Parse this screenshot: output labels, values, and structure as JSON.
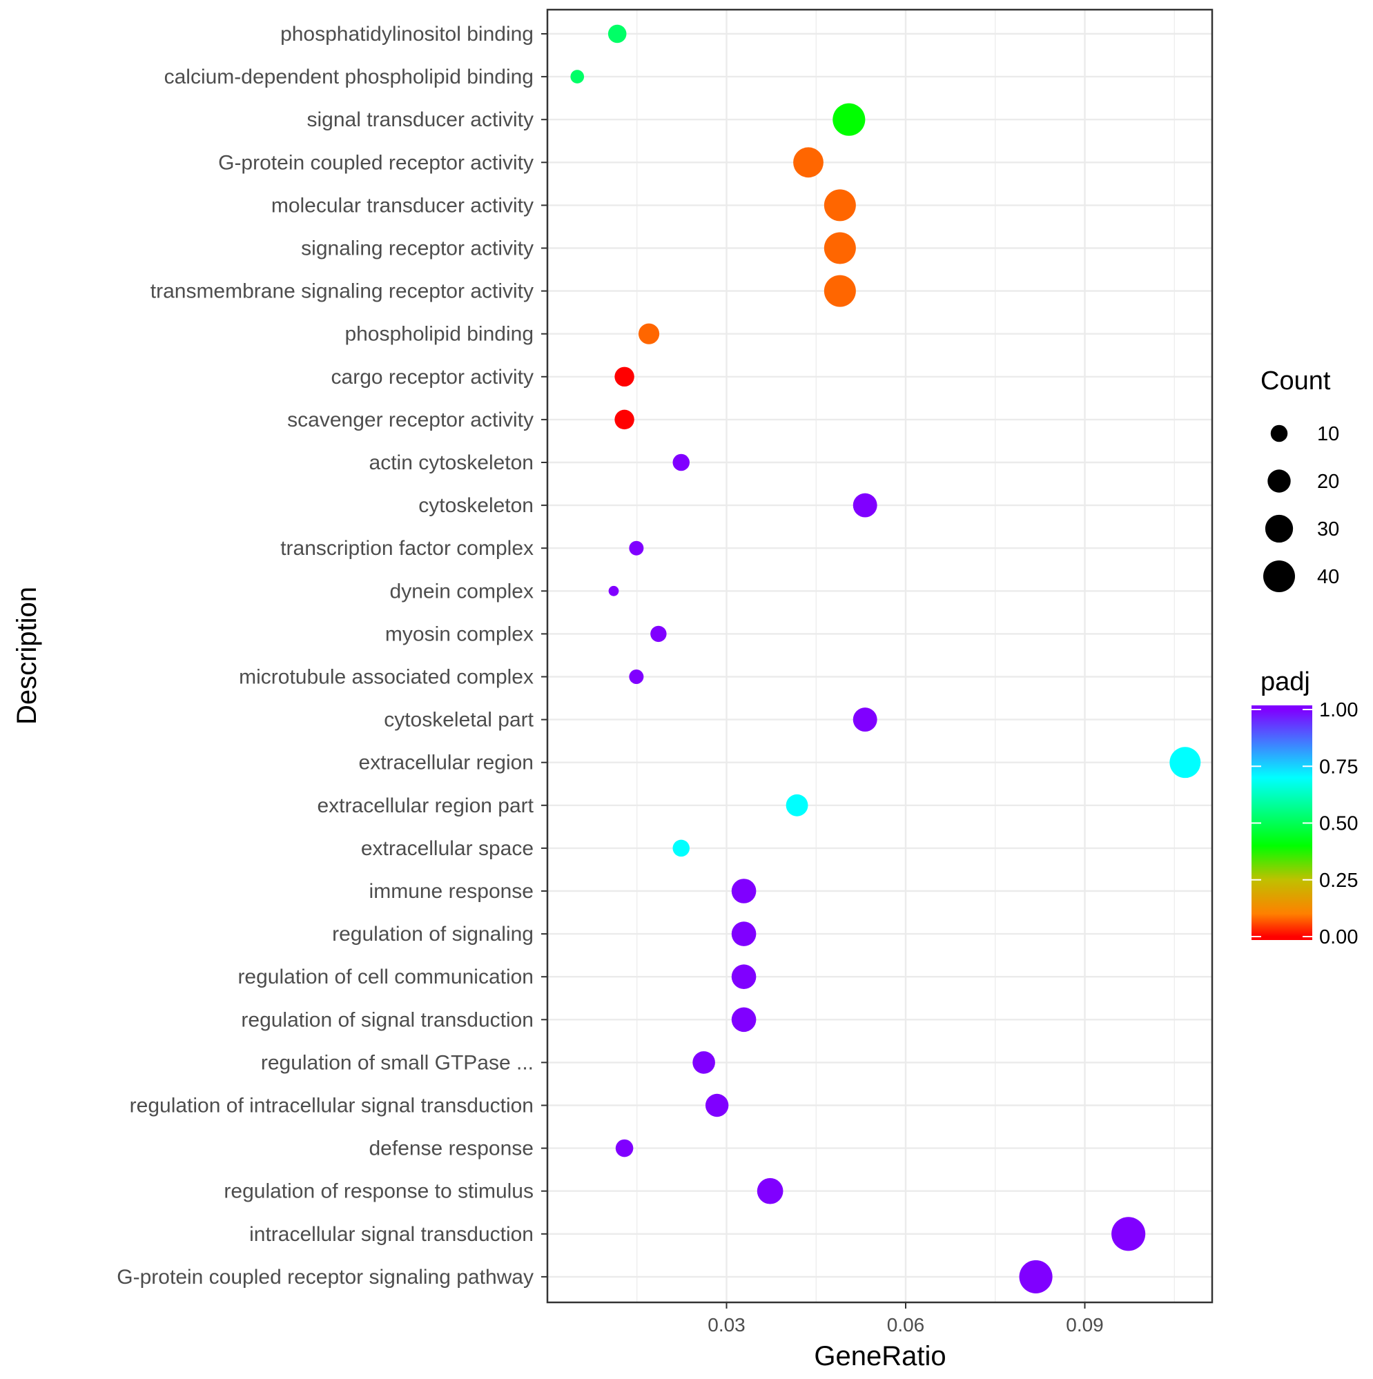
{
  "chart_data": {
    "type": "scatter",
    "xlabel": "GeneRatio",
    "ylabel": "Description",
    "xlim": [
      0.0,
      0.1115
    ],
    "xticks": [
      0.03,
      0.06,
      0.09
    ],
    "xtick_labels": [
      "0.03",
      "0.06",
      "0.09"
    ],
    "grid": true,
    "points": [
      {
        "description": "phosphatidylinositol binding",
        "gene_ratio": 0.0117,
        "count": 12,
        "padj": 0.52
      },
      {
        "description": "calcium-dependent phospholipid binding",
        "gene_ratio": 0.005,
        "count": 6,
        "padj": 0.52
      },
      {
        "description": "signal transducer activity",
        "gene_ratio": 0.0505,
        "count": 42,
        "padj": 0.4
      },
      {
        "description": "G-protein coupled receptor activity",
        "gene_ratio": 0.0437,
        "count": 36,
        "padj": 0.08
      },
      {
        "description": "molecular transducer activity",
        "gene_ratio": 0.049,
        "count": 40,
        "padj": 0.08
      },
      {
        "description": "signaling receptor activity",
        "gene_ratio": 0.049,
        "count": 40,
        "padj": 0.08
      },
      {
        "description": "transmembrane signaling receptor activity",
        "gene_ratio": 0.049,
        "count": 40,
        "padj": 0.08
      },
      {
        "description": "phospholipid binding",
        "gene_ratio": 0.017,
        "count": 16,
        "padj": 0.08
      },
      {
        "description": "cargo receptor activity",
        "gene_ratio": 0.0129,
        "count": 14,
        "padj": 0.0
      },
      {
        "description": "scavenger receptor activity",
        "gene_ratio": 0.0129,
        "count": 14,
        "padj": 0.0
      },
      {
        "description": "actin cytoskeleton",
        "gene_ratio": 0.0224,
        "count": 10,
        "padj": 1.0
      },
      {
        "description": "cytoskeleton",
        "gene_ratio": 0.0532,
        "count": 22,
        "padj": 1.0
      },
      {
        "description": "transcription factor complex",
        "gene_ratio": 0.0149,
        "count": 7,
        "padj": 1.0
      },
      {
        "description": "dynein complex",
        "gene_ratio": 0.0111,
        "count": 3,
        "padj": 1.0
      },
      {
        "description": "myosin complex",
        "gene_ratio": 0.0186,
        "count": 9,
        "padj": 1.0
      },
      {
        "description": "microtubule associated complex",
        "gene_ratio": 0.0149,
        "count": 7,
        "padj": 1.0
      },
      {
        "description": "cytoskeletal part",
        "gene_ratio": 0.0532,
        "count": 22,
        "padj": 1.0
      },
      {
        "description": "extracellular region",
        "gene_ratio": 0.1068,
        "count": 38,
        "padj": 0.7
      },
      {
        "description": "extracellular region part",
        "gene_ratio": 0.0418,
        "count": 18,
        "padj": 0.7
      },
      {
        "description": "extracellular space",
        "gene_ratio": 0.0224,
        "count": 10,
        "padj": 0.7
      },
      {
        "description": "immune response",
        "gene_ratio": 0.0329,
        "count": 23,
        "padj": 1.0
      },
      {
        "description": "regulation of signaling",
        "gene_ratio": 0.0329,
        "count": 23,
        "padj": 1.0
      },
      {
        "description": "regulation of cell communication",
        "gene_ratio": 0.0329,
        "count": 23,
        "padj": 1.0
      },
      {
        "description": "regulation of signal transduction",
        "gene_ratio": 0.0329,
        "count": 23,
        "padj": 1.0
      },
      {
        "description": "regulation of small GTPase ...",
        "gene_ratio": 0.0262,
        "count": 19,
        "padj": 1.0
      },
      {
        "description": "regulation of intracellular signal transduction",
        "gene_ratio": 0.0284,
        "count": 20,
        "padj": 1.0
      },
      {
        "description": "defense response",
        "gene_ratio": 0.0129,
        "count": 11,
        "padj": 1.0
      },
      {
        "description": "regulation of response to stimulus",
        "gene_ratio": 0.0373,
        "count": 26,
        "padj": 1.0
      },
      {
        "description": "intracellular signal transduction",
        "gene_ratio": 0.0973,
        "count": 46,
        "padj": 1.0
      },
      {
        "description": "G-protein coupled receptor signaling pathway",
        "gene_ratio": 0.0818,
        "count": 44,
        "padj": 1.0
      }
    ],
    "legend_size": {
      "title": "Count",
      "values": [
        10,
        20,
        30,
        40
      ],
      "labels": [
        "10",
        "20",
        "30",
        "40"
      ]
    },
    "legend_color": {
      "title": "padj",
      "ticks": [
        1.0,
        0.75,
        0.5,
        0.25,
        0.0
      ],
      "labels": [
        "1.00",
        "0.75",
        "0.50",
        "0.25",
        "0.00"
      ],
      "stops": [
        {
          "value": 0.0,
          "color": "#ff0000"
        },
        {
          "value": 0.1,
          "color": "#ff8000"
        },
        {
          "value": 0.25,
          "color": "#c0c000"
        },
        {
          "value": 0.4,
          "color": "#00ff00"
        },
        {
          "value": 0.55,
          "color": "#00ff80"
        },
        {
          "value": 0.7,
          "color": "#00ffff"
        },
        {
          "value": 0.85,
          "color": "#4080ff"
        },
        {
          "value": 1.0,
          "color": "#8000ff"
        }
      ]
    },
    "colors": {
      "background": "#ffffff",
      "panel_border": "#333333",
      "grid": "#ebebeb",
      "tick_text": "#4d4d4d",
      "size_legend_dot": "#000000"
    }
  }
}
